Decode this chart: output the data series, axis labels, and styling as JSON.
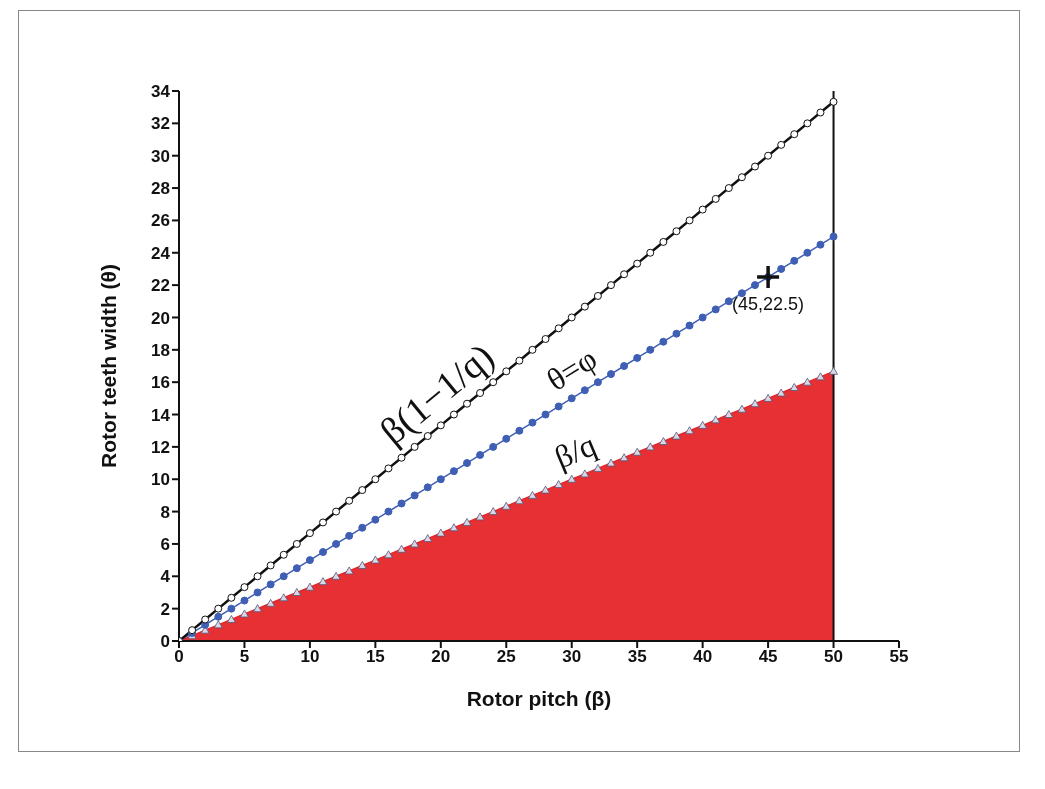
{
  "chart_data": {
    "type": "line",
    "xlabel": "Rotor pitch (β)",
    "ylabel": "Rotor teeth width (θ)",
    "xlim": [
      0,
      55
    ],
    "xticks": [
      0,
      5,
      10,
      15,
      20,
      25,
      30,
      35,
      40,
      45,
      50,
      55
    ],
    "ylim": [
      0,
      34
    ],
    "yticks": [
      0,
      2,
      4,
      6,
      8,
      10,
      12,
      14,
      16,
      18,
      20,
      22,
      24,
      26,
      28,
      30,
      32,
      34
    ],
    "x": [
      0,
      1,
      2,
      3,
      4,
      5,
      6,
      7,
      8,
      9,
      10,
      11,
      12,
      13,
      14,
      15,
      16,
      17,
      18,
      19,
      20,
      21,
      22,
      23,
      24,
      25,
      26,
      27,
      28,
      29,
      30,
      31,
      32,
      33,
      34,
      35,
      36,
      37,
      38,
      39,
      40,
      41,
      42,
      43,
      44,
      45,
      46,
      47,
      48,
      49,
      50
    ],
    "series": [
      {
        "name": "β(1−1/q)",
        "color": "#111111",
        "marker": "circle",
        "values": [
          0,
          0.67,
          1.33,
          2,
          2.67,
          3.33,
          4,
          4.67,
          5.33,
          6,
          6.67,
          7.33,
          8,
          8.67,
          9.33,
          10,
          10.67,
          11.33,
          12,
          12.67,
          13.33,
          14,
          14.67,
          15.33,
          16,
          16.67,
          17.33,
          18,
          18.67,
          19.33,
          20,
          20.67,
          21.33,
          22,
          22.67,
          23.33,
          24,
          24.67,
          25.33,
          26,
          26.67,
          27.33,
          28,
          28.67,
          29.33,
          30,
          30.67,
          31.33,
          32,
          32.67,
          33.33
        ]
      },
      {
        "name": "θ=φ",
        "color": "#3f5fb5",
        "marker": "circle",
        "values": [
          0,
          0.5,
          1,
          1.5,
          2,
          2.5,
          3,
          3.5,
          4,
          4.5,
          5,
          5.5,
          6,
          6.5,
          7,
          7.5,
          8,
          8.5,
          9,
          9.5,
          10,
          10.5,
          11,
          11.5,
          12,
          12.5,
          13,
          13.5,
          14,
          14.5,
          15,
          15.5,
          16,
          16.5,
          17,
          17.5,
          18,
          18.5,
          19,
          19.5,
          20,
          20.5,
          21,
          21.5,
          22,
          22.5,
          23,
          23.5,
          24,
          24.5,
          25
        ]
      },
      {
        "name": "β/q",
        "type": "area",
        "color": "#e52528",
        "marker": "triangle",
        "values": [
          0,
          0.33,
          0.67,
          1,
          1.33,
          1.67,
          2,
          2.33,
          2.67,
          3,
          3.33,
          3.67,
          4,
          4.33,
          4.67,
          5,
          5.33,
          5.67,
          6,
          6.33,
          6.67,
          7,
          7.33,
          7.67,
          8,
          8.33,
          8.67,
          9,
          9.33,
          9.67,
          10,
          10.33,
          10.67,
          11,
          11.33,
          11.67,
          12,
          12.33,
          12.67,
          13,
          13.33,
          13.67,
          14,
          14.33,
          14.67,
          15,
          15.33,
          15.67,
          16,
          16.33,
          16.67
        ]
      }
    ],
    "ref_lines": [
      {
        "axis": "x",
        "value": 50,
        "color": "#111111"
      }
    ],
    "annotations": [
      {
        "text": "(45,22.5)",
        "x": 45,
        "y": 22.5
      }
    ]
  }
}
